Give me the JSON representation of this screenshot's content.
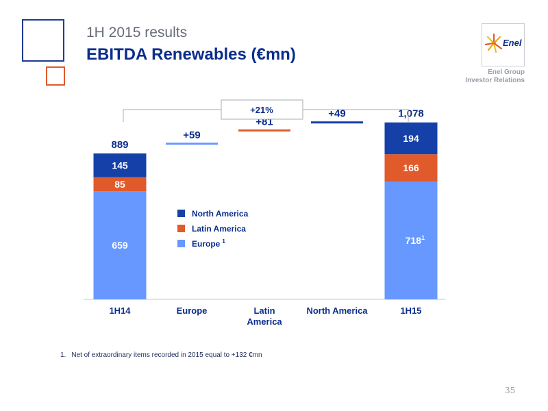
{
  "header": {
    "subtitle": "1H 2015 results",
    "title": "EBITDA Renewables (€mn)"
  },
  "brand": {
    "logo_text": "Enel",
    "group_line1": "Enel Group",
    "group_line2": "Investor Relations",
    "colors": {
      "navy": "#0a2d8c",
      "orange": "#e05a2b",
      "light_blue": "#6698ff",
      "blue": "#1540a8"
    }
  },
  "chart_data": {
    "type": "bar",
    "subtype": "waterfall",
    "categories": [
      "1H14",
      "Europe",
      "Latin\nAmerica",
      "North America",
      "1H15"
    ],
    "series": [
      {
        "name": "North America",
        "color": "#1540a8",
        "values": [
          145,
          null,
          null,
          49,
          194
        ]
      },
      {
        "name": "Latin America",
        "color": "#e05a2b",
        "values": [
          85,
          null,
          81,
          null,
          166
        ]
      },
      {
        "name": "Europe 1",
        "color": "#6698ff",
        "values": [
          659,
          59,
          null,
          null,
          718
        ]
      }
    ],
    "totals": [
      "889",
      "+59",
      "+81",
      "+49",
      "1,078"
    ],
    "segment_labels": {
      "1H14": [
        "659",
        "85",
        "145"
      ],
      "1H15": [
        "718",
        "166",
        "194"
      ]
    },
    "superscripts": {
      "1H15_europe": "1",
      "legend_europe": "1"
    },
    "legend": [
      {
        "label": "North America",
        "color": "#1540a8"
      },
      {
        "label": "Latin America",
        "color": "#e05a2b"
      },
      {
        "label": "Europe",
        "superscript": "1",
        "color": "#6698ff"
      }
    ],
    "growth_annotation": "+21%",
    "start_total": 889,
    "end_total": 1078
  },
  "footnote": {
    "marker": "1.",
    "text": "Net of extraordinary items recorded in 2015 equal to +132 €mn"
  },
  "page_number": "35"
}
